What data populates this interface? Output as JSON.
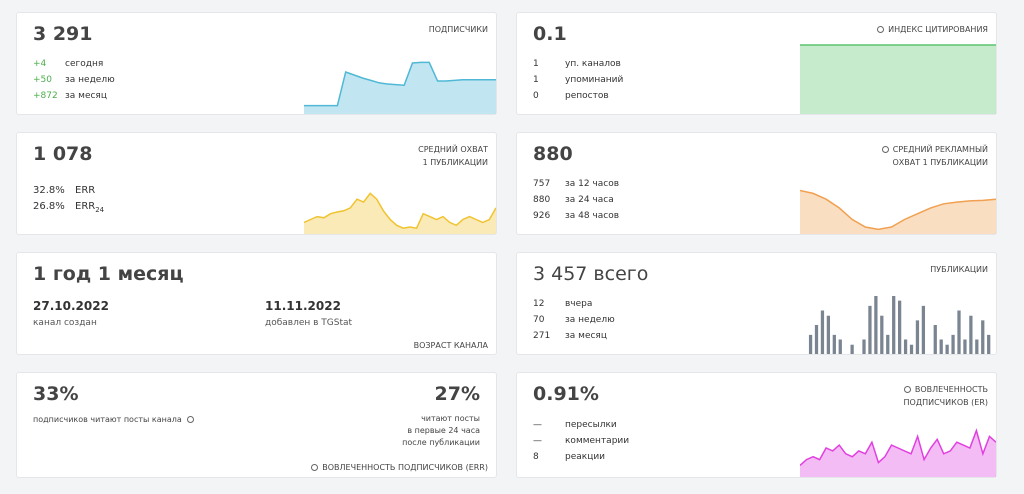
{
  "cards": [
    {
      "big": "3 291",
      "label": [
        "ПОДПИСЧИКИ"
      ],
      "rows": [
        [
          "+4",
          "сегодня"
        ],
        [
          "+50",
          "за неделю"
        ],
        [
          "+872",
          "за месяц"
        ]
      ],
      "spark": {
        "type": "area",
        "color": "#4fb8d6",
        "ylim": [
          0,
          100
        ],
        "values": [
          14,
          14,
          14,
          14,
          14,
          70,
          65,
          60,
          56,
          52,
          50,
          49,
          48,
          85,
          86,
          86,
          55,
          55,
          56,
          57,
          57,
          57,
          57,
          57
        ]
      }
    },
    {
      "big": "0.1",
      "label": [
        "ИНДЕКС ЦИТИРОВАНИЯ"
      ],
      "rows": [
        [
          "1",
          "уп. каналов"
        ],
        [
          "1",
          "упоминаний"
        ],
        [
          "0",
          "репостов"
        ]
      ],
      "spark": {
        "type": "area",
        "color": "#5cc46e",
        "ylim": [
          0,
          100
        ],
        "values": [
          100,
          100,
          100,
          100,
          100,
          100,
          100,
          100,
          100,
          100,
          100,
          100
        ]
      }
    },
    {
      "big": "1 078",
      "label": [
        "СРЕДНИЙ ОХВАТ",
        "1 ПУБЛИКАЦИИ"
      ],
      "rows": [
        [
          "32.8%",
          "ERR"
        ],
        [
          "26.8%",
          "ERR",
          "24"
        ]
      ],
      "spark": {
        "type": "area",
        "color": "#f0c330",
        "ylim": [
          0,
          100
        ],
        "values": [
          20,
          25,
          30,
          28,
          35,
          38,
          40,
          45,
          60,
          55,
          70,
          60,
          40,
          25,
          15,
          10,
          12,
          10,
          35,
          30,
          25,
          30,
          20,
          15,
          25,
          30,
          25,
          20,
          25,
          45
        ]
      }
    },
    {
      "big": "880",
      "label": [
        "СРЕДНИЙ РЕКЛАМНЫЙ",
        "ОХВАТ 1 ПУБЛИКАЦИИ"
      ],
      "rows": [
        [
          "757",
          "за 12 часов"
        ],
        [
          "880",
          "за 24 часа"
        ],
        [
          "926",
          "за 48 часов"
        ]
      ],
      "spark": {
        "type": "area",
        "color": "#f0a050",
        "ylim": [
          0,
          100
        ],
        "values": [
          75,
          70,
          60,
          45,
          25,
          12,
          8,
          12,
          25,
          35,
          45,
          52,
          55,
          57,
          58,
          60
        ]
      }
    },
    {
      "big": "1 год 1 месяц",
      "dates": [
        [
          "27.10.2022",
          "канал создан"
        ],
        [
          "11.11.2022",
          "добавлен в TGStat"
        ]
      ],
      "footer": "ВОЗРАСТ КАНАЛА"
    },
    {
      "big": "3 457 всего",
      "label": [
        "ПУБЛИКАЦИИ"
      ],
      "rows": [
        [
          "12",
          "вчера"
        ],
        [
          "70",
          "за неделю"
        ],
        [
          "271",
          "за месяц"
        ]
      ],
      "spark": {
        "type": "bars",
        "color": "#7a8591",
        "ylim": [
          0,
          100
        ],
        "values": [
          0,
          33,
          50,
          75,
          66,
          33,
          25,
          0,
          16,
          0,
          25,
          83,
          100,
          66,
          33,
          100,
          92,
          25,
          16,
          58,
          83,
          0,
          50,
          25,
          16,
          33,
          75,
          25,
          66,
          25,
          58,
          33
        ]
      }
    },
    {
      "left": {
        "big": "33%",
        "text": "подписчиков читают посты канала"
      },
      "right": {
        "big": "27%",
        "text": [
          "читают посты",
          "в первые 24 часа",
          "после публикации"
        ]
      },
      "footer": "ВОВЛЕЧЕННОСТЬ ПОДПИСЧИКОВ (ERR)"
    },
    {
      "big": "0.91%",
      "label": [
        "ВОВЛЕЧЕННОСТЬ",
        "ПОДПИСЧИКОВ (ER)"
      ],
      "rows": [
        [
          "—",
          "пересылки"
        ],
        [
          "—",
          "комментарии"
        ],
        [
          "8",
          "реакции"
        ]
      ],
      "spark": {
        "type": "area",
        "color": "#e040e0",
        "ylim": [
          0,
          100
        ],
        "values": [
          20,
          30,
          35,
          30,
          50,
          45,
          55,
          40,
          35,
          45,
          40,
          60,
          25,
          35,
          55,
          50,
          45,
          40,
          70,
          30,
          50,
          65,
          40,
          45,
          60,
          55,
          50,
          80,
          40,
          70,
          60
        ]
      }
    }
  ]
}
